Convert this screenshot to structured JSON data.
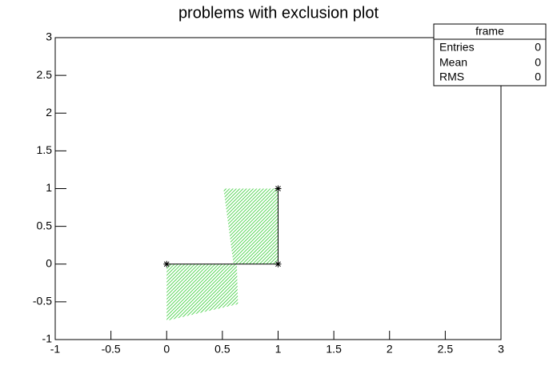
{
  "chart_data": {
    "type": "line",
    "title": "problems with exclusion plot",
    "x": [
      0,
      1,
      1
    ],
    "values": [
      0,
      0,
      1
    ],
    "color": "#000000",
    "marker": "star",
    "exclusion_color": "#33cc33",
    "exclusion_regions": [
      {
        "x": [
          0.51,
          1,
          1,
          0.6
        ],
        "y": [
          1,
          1,
          0,
          0
        ]
      },
      {
        "x": [
          0,
          0.63,
          0.64,
          0
        ],
        "y": [
          0,
          0,
          -0.53,
          -0.75
        ]
      }
    ],
    "xlim": [
      -1,
      3
    ],
    "ylim": [
      -1,
      3
    ],
    "xticks": [
      -1,
      -0.5,
      0,
      0.5,
      1,
      1.5,
      2,
      2.5,
      3
    ],
    "yticks": [
      -1,
      -0.5,
      0,
      0.5,
      1,
      1.5,
      2,
      2.5,
      3
    ],
    "grid": false
  },
  "stats_box": {
    "title": "frame",
    "rows": [
      [
        "Entries",
        0
      ],
      [
        "Mean",
        0
      ],
      [
        "RMS",
        0
      ]
    ]
  }
}
